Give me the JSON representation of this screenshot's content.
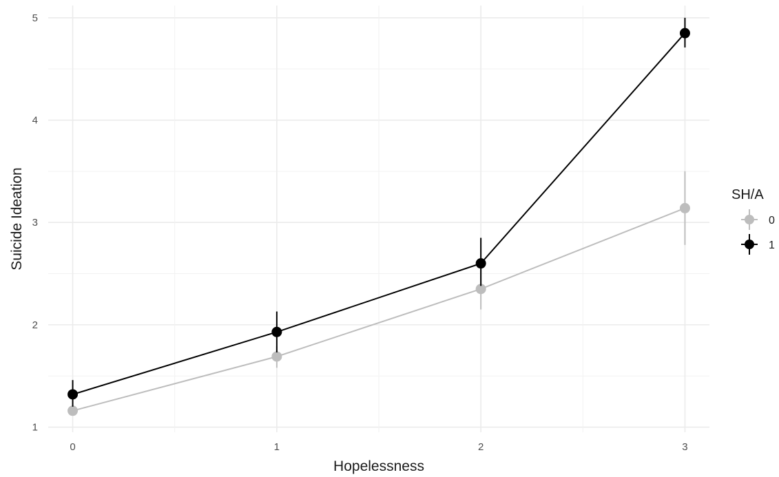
{
  "chart_data": {
    "type": "line",
    "xlabel": "Hopelessness",
    "ylabel": "Suicide Ideation",
    "x": [
      0,
      1,
      2,
      3
    ],
    "xlim": [
      -0.12,
      3.12
    ],
    "ylim": [
      0.95,
      5.12
    ],
    "x_ticks": [
      0,
      1,
      2,
      3
    ],
    "x_tick_labels": [
      "0",
      "1",
      "2",
      "3"
    ],
    "y_ticks": [
      1,
      2,
      3,
      4,
      5
    ],
    "y_tick_labels": [
      "1",
      "2",
      "3",
      "4",
      "5"
    ],
    "grid": true,
    "legend": {
      "title": "SH/A",
      "placement": "right"
    },
    "series": [
      {
        "name": "0",
        "color": "#bdbdbd",
        "values": [
          1.16,
          1.69,
          2.35,
          3.14
        ],
        "error_low": [
          1.12,
          1.58,
          2.15,
          2.78
        ],
        "error_high": [
          1.2,
          1.79,
          2.55,
          3.5
        ]
      },
      {
        "name": "1",
        "color": "#000000",
        "values": [
          1.32,
          1.93,
          2.6,
          4.85
        ],
        "error_low": [
          1.2,
          1.73,
          2.38,
          4.71
        ],
        "error_high": [
          1.46,
          2.13,
          2.85,
          5.0
        ]
      }
    ]
  }
}
